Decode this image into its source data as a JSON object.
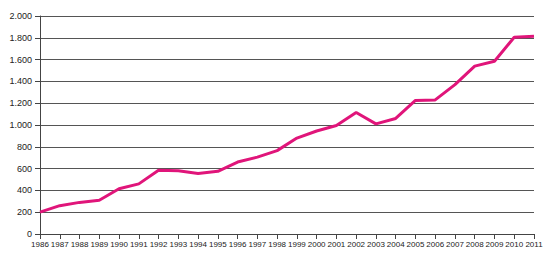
{
  "chart_data": {
    "type": "line",
    "categories": [
      "1986",
      "1987",
      "1988",
      "1989",
      "1990",
      "1991",
      "1992",
      "1993",
      "1994",
      "1995",
      "1996",
      "1997",
      "1998",
      "1999",
      "2000",
      "2001",
      "2002",
      "2003",
      "2004",
      "2005",
      "2006",
      "2007",
      "2008",
      "2009",
      "2010",
      "2011"
    ],
    "values": [
      200,
      260,
      290,
      310,
      415,
      460,
      585,
      580,
      555,
      575,
      660,
      705,
      765,
      880,
      945,
      995,
      1115,
      1010,
      1060,
      1225,
      1230,
      1370,
      1540,
      1585,
      1805,
      1815
    ],
    "color": "#e0157a",
    "ylim": [
      0,
      2000
    ],
    "yticks": [
      0,
      200,
      400,
      600,
      800,
      {
        "value": 1000,
        "label": "1.000"
      },
      {
        "value": 1200,
        "label": "1.200"
      },
      {
        "value": 1400,
        "label": "1.400"
      },
      {
        "value": 1600,
        "label": "1.600"
      },
      {
        "value": 1800,
        "label": "1.800"
      },
      {
        "value": 2000,
        "label": "2.000"
      }
    ],
    "grid": true
  }
}
